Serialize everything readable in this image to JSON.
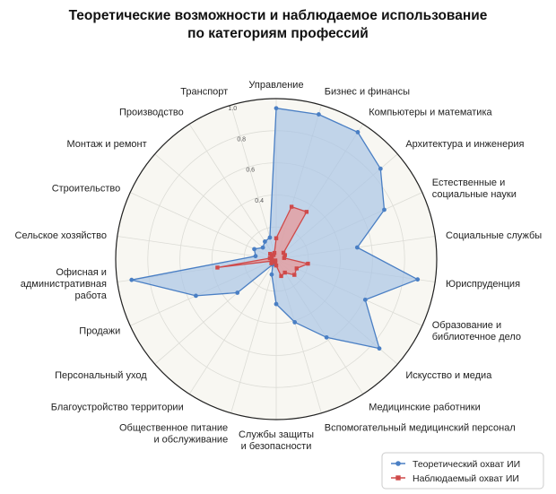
{
  "chart_data": {
    "type": "radar",
    "title_lines": [
      "Теоретические возможности и наблюдаемое использование",
      "по категориям профессий"
    ],
    "categories": [
      "Управление",
      "Бизнес и финансы",
      "Компьютеры и математика",
      "Архитектура и инженерия",
      "Естественные и\nсоциальные науки",
      "Социальные службы",
      "Юриспруденция",
      "Образование и\nбиблиотечное дело",
      "Искусство и медиа",
      "Медицинские работники",
      "Вспомогательный медицинский персонал",
      "Службы защиты\nи безопасности",
      "Общественное питание\nи обслуживание",
      "Благоустройство территории",
      "Персональный уход",
      "Продажи",
      "Офисная и\nадминистративная\nработа",
      "Сельское хозяйство",
      "Строительство",
      "Монтаж и ремонт",
      "Производство",
      "Транспорт"
    ],
    "radial_ticks": [
      "0.4",
      "0.6",
      "0.8",
      "1.0"
    ],
    "rlim": [
      0,
      1.0
    ],
    "grid": true,
    "legend_position": "bottom-right",
    "series": [
      {
        "name": "Теоретический охват ИИ",
        "color": "#4a7fc4",
        "fill": "#a9c4e6",
        "values": [
          0.94,
          0.94,
          0.94,
          0.86,
          0.74,
          0.51,
          0.89,
          0.61,
          0.85,
          0.58,
          0.41,
          0.28,
          0.1,
          0.04,
          0.32,
          0.55,
          0.91,
          0.13,
          0.15,
          0.11,
          0.13,
          0.14
        ]
      },
      {
        "name": "Наблюдаемый охват ИИ",
        "color": "#cf4a4a",
        "fill": "#e79a9a",
        "values": [
          0.13,
          0.34,
          0.35,
          0.06,
          0.06,
          0.05,
          0.2,
          0.14,
          0.15,
          0.1,
          0.11,
          0.04,
          0.02,
          0.01,
          0.04,
          0.03,
          0.37,
          0.04,
          0.03,
          0.05,
          0.03,
          0.04
        ]
      }
    ]
  }
}
